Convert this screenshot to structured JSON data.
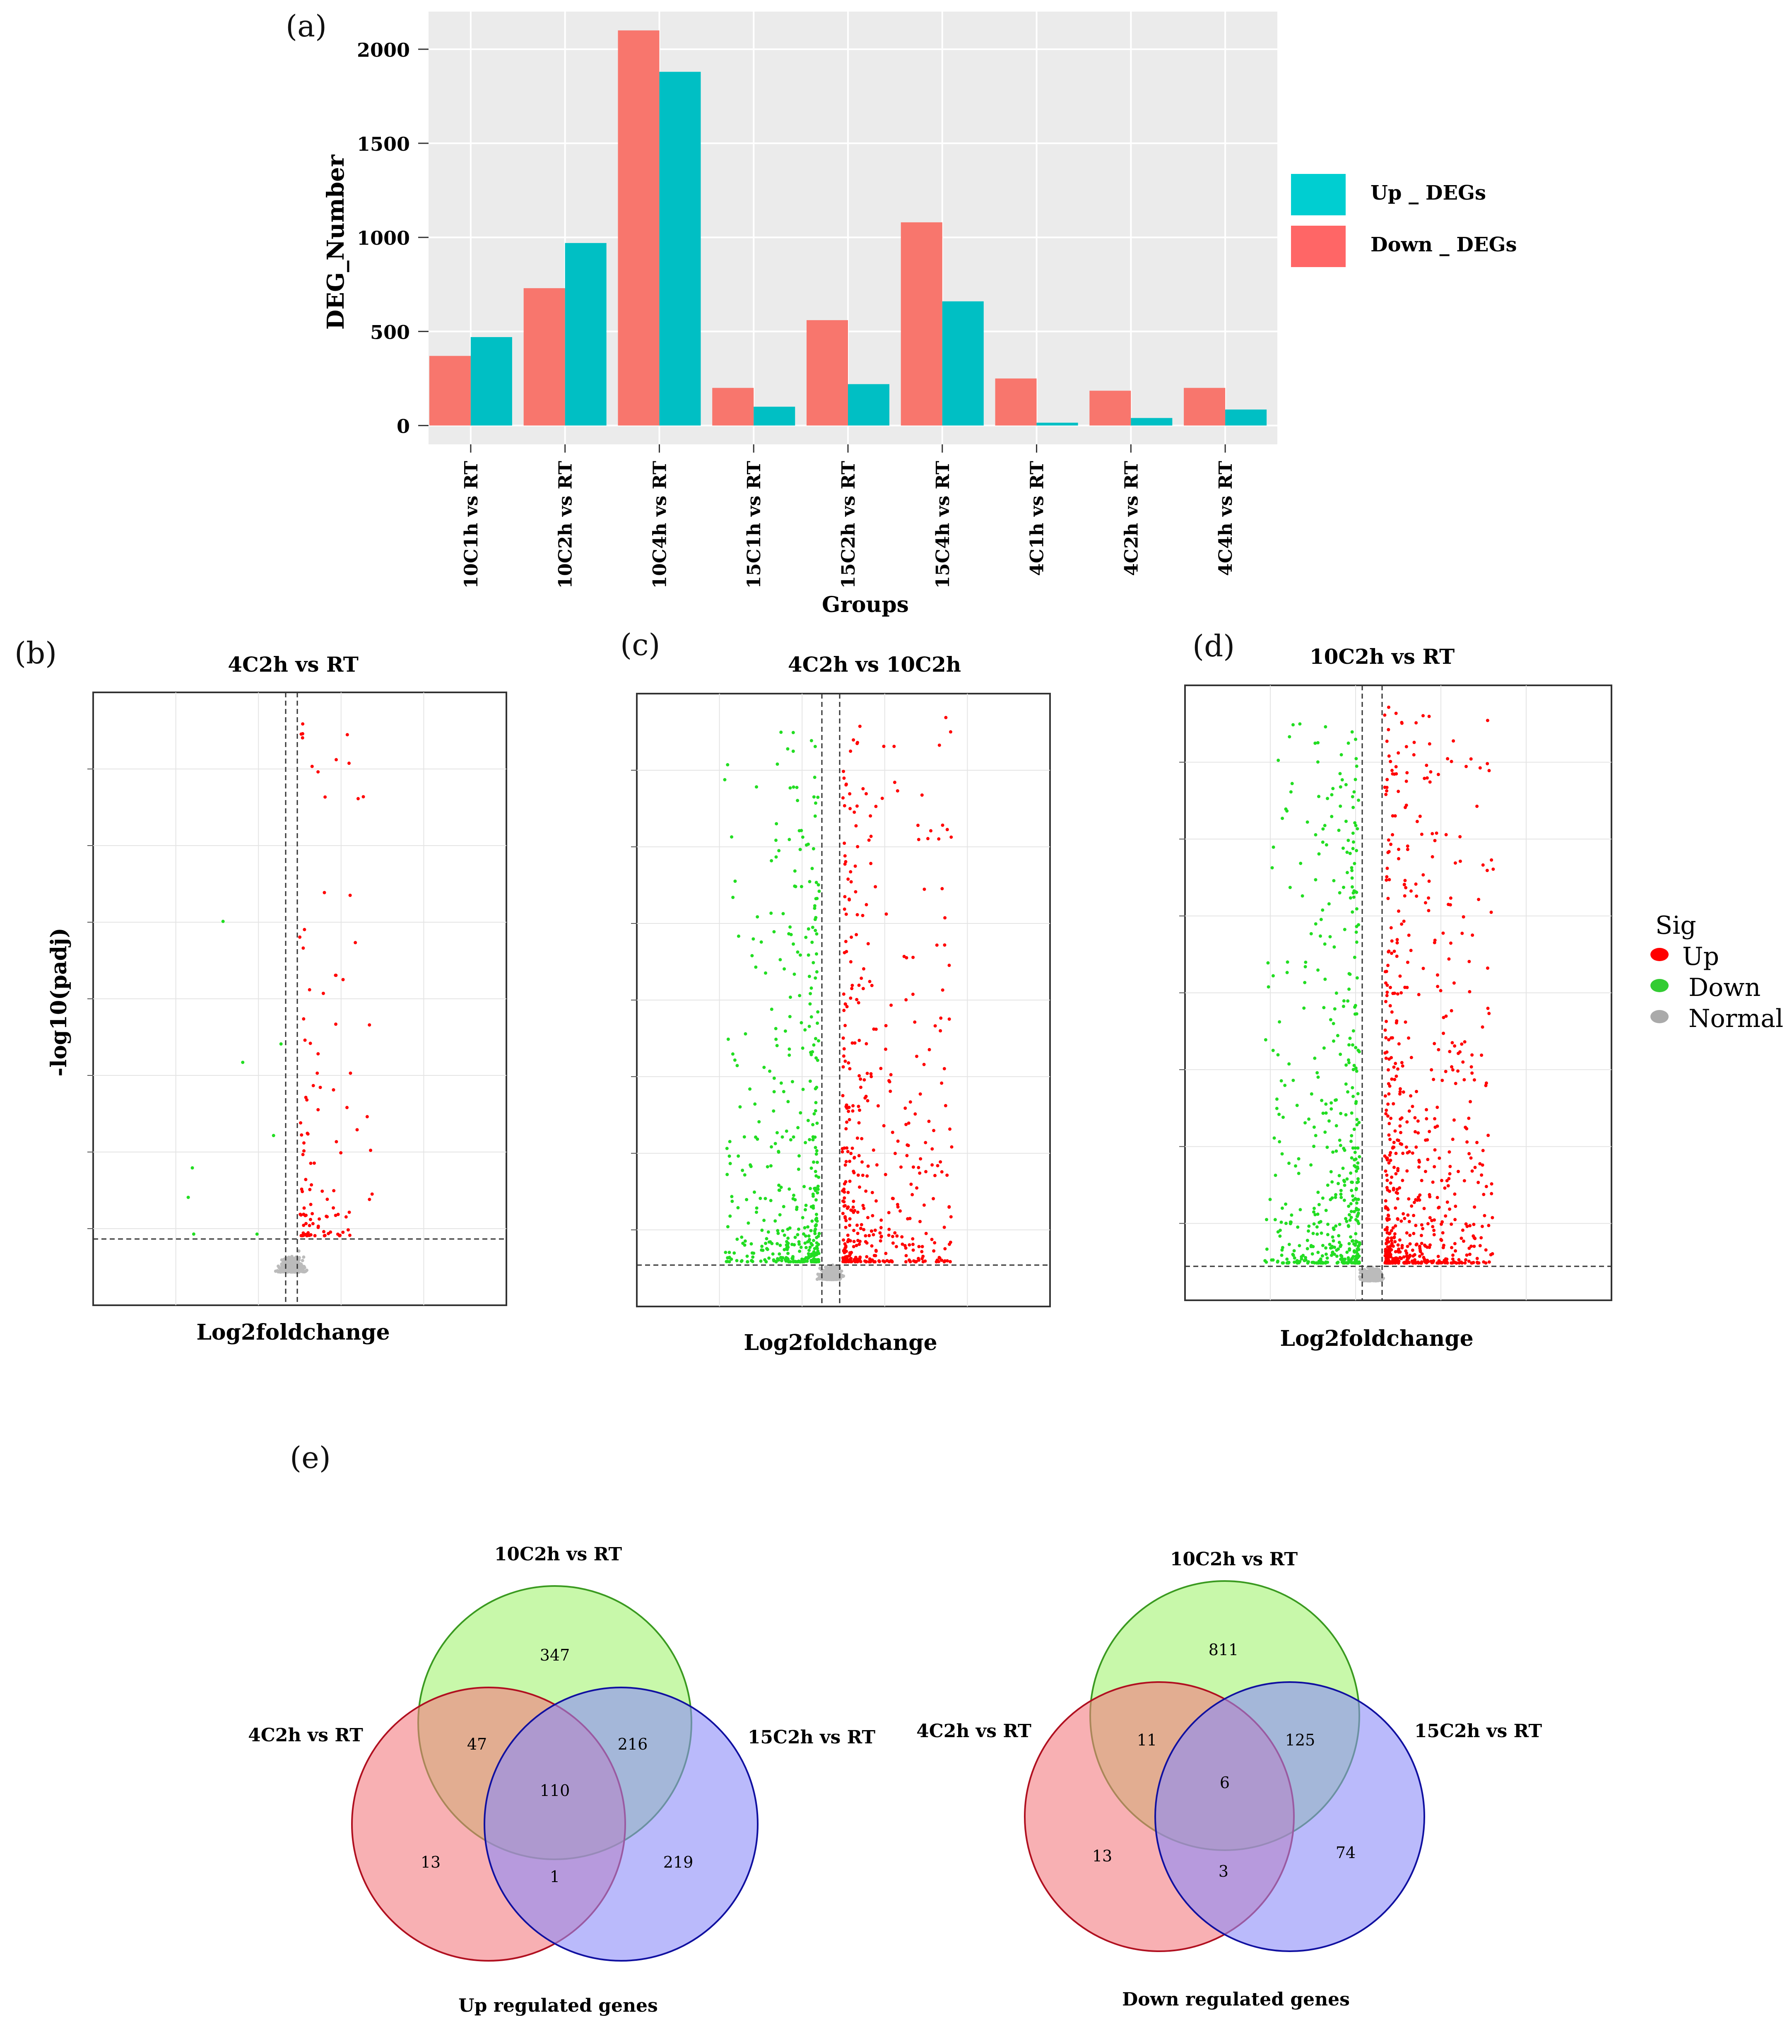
{
  "panels": {
    "a": {
      "label": "(a)",
      "chart_data": {
        "type": "bar",
        "title": "",
        "xlabel": "Groups",
        "ylabel": "DEG_Number",
        "ylim": [
          -100,
          2200
        ],
        "yticks": [
          0,
          500,
          1000,
          1500,
          2000
        ],
        "categories": [
          "10C1h vs RT",
          "10C2h vs RT",
          "10C4h vs RT",
          "15C1h vs RT",
          "15C2h vs RT",
          "15C4h vs RT",
          "4C1h vs RT",
          "4C2h vs RT",
          "4C4h vs RT"
        ],
        "series": [
          {
            "name": "Down _ DEGs",
            "color": "#F8766D",
            "values": [
              370,
              730,
              2100,
              200,
              560,
              1080,
              250,
              185,
              200
            ]
          },
          {
            "name": "Up _ DEGs",
            "color": "#00BFC4",
            "values": [
              470,
              970,
              1880,
              100,
              220,
              660,
              15,
              40,
              85
            ]
          }
        ],
        "legend": [
          "Up _ DEGs",
          "Down _ DEGs"
        ],
        "legend_position": "right",
        "background": "#EBEBEB"
      }
    },
    "volcano": {
      "ylabel": "-log10(padj)",
      "xlabel": "Log2foldchange",
      "legend": {
        "title": "Sig",
        "items": [
          {
            "label": "Up",
            "color": "#FF0000"
          },
          {
            "label": "Down",
            "color": "#33CC33"
          },
          {
            "label": "Normal",
            "color": "#AAAAAA"
          }
        ]
      },
      "plots": [
        {
          "label": "(b)",
          "title": "4C2h vs RT",
          "chart_data": {
            "type": "scatter",
            "title": "4C2h vs RT",
            "xlabel": "Log2foldchange",
            "ylabel": "-log10(padj)",
            "xlim": [
              -10,
              10
            ],
            "ylim": [
              0,
              9
            ],
            "vlines": [
              -0.5,
              0.5
            ],
            "hline": 0.55,
            "counts": {
              "up": 110,
              "down": 8,
              "normal": 500
            }
          }
        },
        {
          "label": "(c)",
          "title": "4C2h vs 10C2h",
          "chart_data": {
            "type": "scatter",
            "title": "4C2h vs 10C2h",
            "xlabel": "Log2foldchange",
            "ylabel": "-log10(padj)",
            "xlim": [
              -10,
              10
            ],
            "ylim": [
              0,
              10
            ],
            "vlines": [
              -0.5,
              0.5
            ],
            "hline": 0.2,
            "counts": {
              "up": 420,
              "down": 420,
              "normal": 700
            }
          }
        },
        {
          "label": "(d)",
          "title": "10C2h vs RT",
          "chart_data": {
            "type": "scatter",
            "title": "10C2h vs RT",
            "xlabel": "Log2foldchange",
            "ylabel": "-log10(padj)",
            "xlim": [
              -10,
              10
            ],
            "ylim": [
              0,
              10
            ],
            "vlines": [
              -0.5,
              0.5
            ],
            "hline": 0.2,
            "counts": {
              "up": 650,
              "down": 480,
              "normal": 700
            }
          }
        }
      ]
    },
    "e": {
      "label": "(e)",
      "venns": [
        {
          "caption": "Up regulated genes",
          "sets": [
            "10C2h vs RT",
            "4C2h vs RT",
            "15C2h vs RT"
          ],
          "regions": {
            "top_only": "347",
            "left_only": "13",
            "right_only": "219",
            "top_left": "47",
            "top_right": "216",
            "left_right": "1",
            "all": "110"
          }
        },
        {
          "caption": "Down regulated genes",
          "sets": [
            "10C2h vs RT",
            "4C2h vs RT",
            "15C2h vs RT"
          ],
          "regions": {
            "top_only": "811",
            "left_only": "13",
            "right_only": "74",
            "top_left": "11",
            "top_right": "125",
            "left_right": "3",
            "all": "6"
          }
        }
      ],
      "colors": {
        "top": "#B5F58D",
        "left": "#F47C80",
        "right": "#8C8CF8",
        "top_stroke": "#3A9A20",
        "left_stroke": "#B01020",
        "right_stroke": "#1010A0"
      }
    }
  }
}
